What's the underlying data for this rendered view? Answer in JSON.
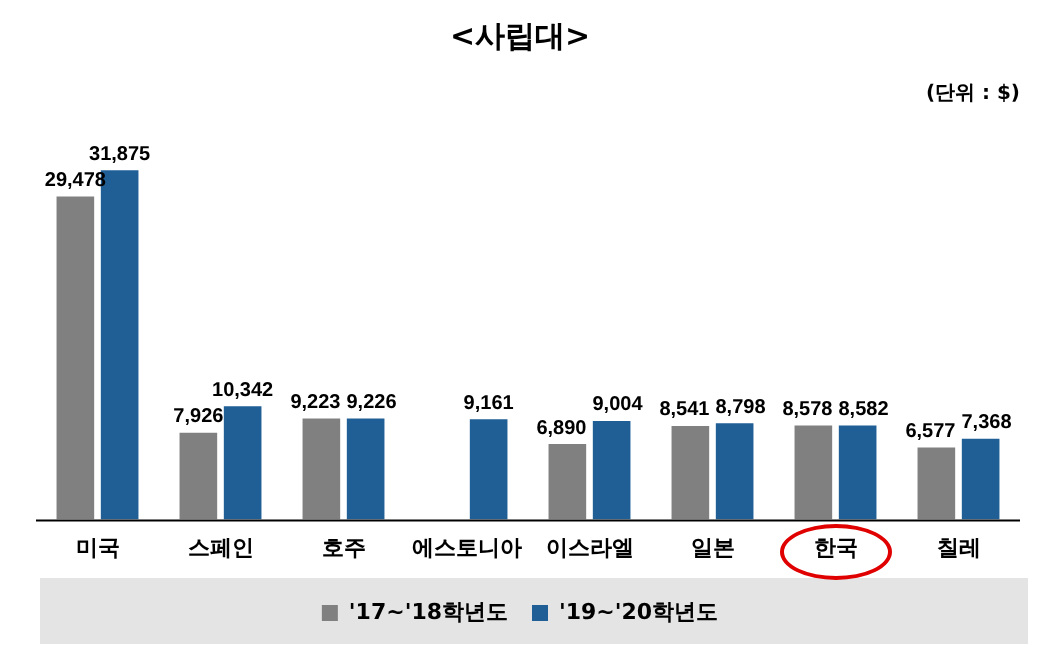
{
  "chart_data": {
    "type": "bar",
    "title": "<사립대>",
    "annotations": [
      "(단위 : $)"
    ],
    "categories": [
      "미국",
      "스페인",
      "호주",
      "에스토니아",
      "이스라엘",
      "일본",
      "한국",
      "칠레"
    ],
    "series": [
      {
        "name": "'17~'18학년도",
        "color": "#808080",
        "values": [
          29478,
          7926,
          9223,
          null,
          6890,
          8541,
          8578,
          6577
        ],
        "value_labels": [
          "29,478",
          "7,926",
          "9,223",
          null,
          "6,890",
          "8,541",
          "8,578",
          "6,577"
        ]
      },
      {
        "name": "'19~'20학년도",
        "color": "#1f5f96",
        "values": [
          31875,
          10342,
          9226,
          9161,
          9004,
          8798,
          8582,
          7368
        ],
        "value_labels": [
          "31,875",
          "10,342",
          "9,226",
          "9,161",
          "9,004",
          "8,798",
          "8,582",
          "7,368"
        ]
      }
    ],
    "relative": false,
    "grid": false,
    "legend": "bottom"
  }
}
